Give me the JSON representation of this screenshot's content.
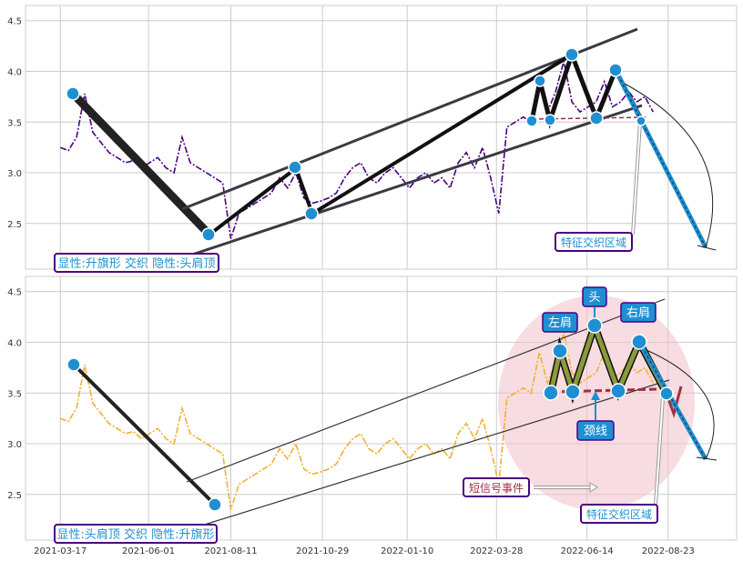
{
  "chart_data": [
    {
      "type": "line",
      "panel": "top",
      "ylim": [
        2.05,
        4.65
      ],
      "yticks": [
        2.5,
        3.0,
        3.5,
        4.0,
        4.5
      ],
      "grid": true,
      "series": [
        {
          "color": "#4b0082",
          "style": "dash-dot",
          "x": [
            "2021-03-17",
            "2021-03-24",
            "2021-03-31",
            "2021-04-07",
            "2021-04-14",
            "2021-04-21",
            "2021-04-28",
            "2021-05-05",
            "2021-05-12",
            "2021-05-19",
            "2021-05-26",
            "2021-06-02",
            "2021-06-09",
            "2021-06-16",
            "2021-06-23",
            "2021-06-30",
            "2021-07-07",
            "2021-07-14",
            "2021-07-21",
            "2021-07-28",
            "2021-08-04",
            "2021-08-11",
            "2021-08-18",
            "2021-08-25",
            "2021-09-01",
            "2021-09-08",
            "2021-09-15",
            "2021-09-22",
            "2021-09-29",
            "2021-10-06",
            "2021-10-13",
            "2021-10-20",
            "2021-10-27",
            "2021-11-03",
            "2021-11-10",
            "2021-11-17",
            "2021-11-24",
            "2021-12-01",
            "2021-12-08",
            "2021-12-15",
            "2021-12-22",
            "2021-12-29",
            "2022-01-05",
            "2022-01-12",
            "2022-01-19",
            "2022-01-26",
            "2022-02-02",
            "2022-02-09",
            "2022-02-16",
            "2022-02-23",
            "2022-03-02",
            "2022-03-09",
            "2022-03-16",
            "2022-03-23",
            "2022-03-30",
            "2022-04-06",
            "2022-04-13",
            "2022-04-20",
            "2022-04-27",
            "2022-05-04",
            "2022-05-11",
            "2022-05-18",
            "2022-05-25",
            "2022-06-01",
            "2022-06-08",
            "2022-06-15",
            "2022-06-22",
            "2022-06-29",
            "2022-07-06",
            "2022-07-13",
            "2022-07-20",
            "2022-07-27",
            "2022-08-03",
            "2022-08-10"
          ],
          "y": [
            3.25,
            3.22,
            3.35,
            3.78,
            3.4,
            3.3,
            3.2,
            3.15,
            3.1,
            3.12,
            3.05,
            3.1,
            3.15,
            3.05,
            3.0,
            3.35,
            3.1,
            3.05,
            3.0,
            2.95,
            2.9,
            2.35,
            2.6,
            2.65,
            2.7,
            2.75,
            2.8,
            2.95,
            2.85,
            3.0,
            2.75,
            2.7,
            2.72,
            2.75,
            2.8,
            2.95,
            3.05,
            3.1,
            2.95,
            2.9,
            3.0,
            3.05,
            2.95,
            2.85,
            2.95,
            3.0,
            2.9,
            2.95,
            2.85,
            3.1,
            3.2,
            3.05,
            3.25,
            2.95,
            2.6,
            3.45,
            3.5,
            3.55,
            3.5,
            3.9,
            3.6,
            3.8,
            4.1,
            3.7,
            3.6,
            3.65,
            3.7,
            3.9,
            3.65,
            3.7,
            3.8,
            3.7,
            3.75,
            3.6
          ]
        }
      ]
    },
    {
      "type": "line",
      "panel": "bottom",
      "ylim": [
        2.05,
        4.65
      ],
      "yticks": [
        2.5,
        3.0,
        3.5,
        4.0,
        4.5
      ],
      "xticks": [
        "2021-03-17",
        "2021-06-01",
        "2021-08-11",
        "2021-10-29",
        "2022-01-10",
        "2022-03-28",
        "2022-06-14",
        "2022-08-23"
      ],
      "grid": true,
      "series": [
        {
          "color": "#f0b030",
          "style": "dash-dot",
          "x": [
            "2021-03-17",
            "2021-03-24",
            "2021-03-31",
            "2021-04-07",
            "2021-04-14",
            "2021-04-21",
            "2021-04-28",
            "2021-05-05",
            "2021-05-12",
            "2021-05-19",
            "2021-05-26",
            "2021-06-02",
            "2021-06-09",
            "2021-06-16",
            "2021-06-23",
            "2021-06-30",
            "2021-07-07",
            "2021-07-14",
            "2021-07-21",
            "2021-07-28",
            "2021-08-04",
            "2021-08-11",
            "2021-08-18",
            "2021-08-25",
            "2021-09-01",
            "2021-09-08",
            "2021-09-15",
            "2021-09-22",
            "2021-09-29",
            "2021-10-06",
            "2021-10-13",
            "2021-10-20",
            "2021-10-27",
            "2021-11-03",
            "2021-11-10",
            "2021-11-17",
            "2021-11-24",
            "2021-12-01",
            "2021-12-08",
            "2021-12-15",
            "2021-12-22",
            "2021-12-29",
            "2022-01-05",
            "2022-01-12",
            "2022-01-19",
            "2022-01-26",
            "2022-02-02",
            "2022-02-09",
            "2022-02-16",
            "2022-02-23",
            "2022-03-02",
            "2022-03-09",
            "2022-03-16",
            "2022-03-23",
            "2022-03-30",
            "2022-04-06",
            "2022-04-13",
            "2022-04-20",
            "2022-04-27",
            "2022-05-04",
            "2022-05-11",
            "2022-05-18",
            "2022-05-25",
            "2022-06-01",
            "2022-06-08",
            "2022-06-15",
            "2022-06-22",
            "2022-06-29",
            "2022-07-06",
            "2022-07-13",
            "2022-07-20",
            "2022-07-27",
            "2022-08-03",
            "2022-08-10"
          ],
          "y": [
            3.25,
            3.22,
            3.35,
            3.78,
            3.4,
            3.3,
            3.2,
            3.15,
            3.1,
            3.12,
            3.05,
            3.1,
            3.15,
            3.05,
            3.0,
            3.35,
            3.1,
            3.05,
            3.0,
            2.95,
            2.9,
            2.35,
            2.6,
            2.65,
            2.7,
            2.75,
            2.8,
            2.95,
            2.85,
            3.0,
            2.75,
            2.7,
            2.72,
            2.75,
            2.8,
            2.95,
            3.05,
            3.1,
            2.95,
            2.9,
            3.0,
            3.05,
            2.95,
            2.85,
            2.95,
            3.0,
            2.9,
            2.95,
            2.85,
            3.1,
            3.2,
            3.05,
            3.25,
            2.95,
            2.6,
            3.45,
            3.5,
            3.55,
            3.5,
            3.9,
            3.6,
            3.8,
            4.1,
            3.7,
            3.6,
            3.65,
            3.7,
            3.9,
            3.65,
            3.7,
            3.8,
            3.7,
            3.75,
            3.6
          ]
        }
      ]
    }
  ],
  "annotations": {
    "top_label": "显性:升旗形 交织 隐性:头肩顶",
    "top_region": "特征交织区域",
    "bottom_label": "显性:头肩顶 交织 隐性:升旗形",
    "bottom_region": "特征交织区域",
    "left_shoulder": "左肩",
    "head": "头",
    "right_shoulder": "右肩",
    "neckline": "颈线",
    "short_signal": "短信号事件"
  },
  "colors": {
    "grid": "#cccccc",
    "accent_blue": "#1f8fd1",
    "label_border": "#4b0082",
    "pink": "#f0c0c8",
    "olive": "#8a9a3a",
    "dark_red": "#a03040"
  }
}
